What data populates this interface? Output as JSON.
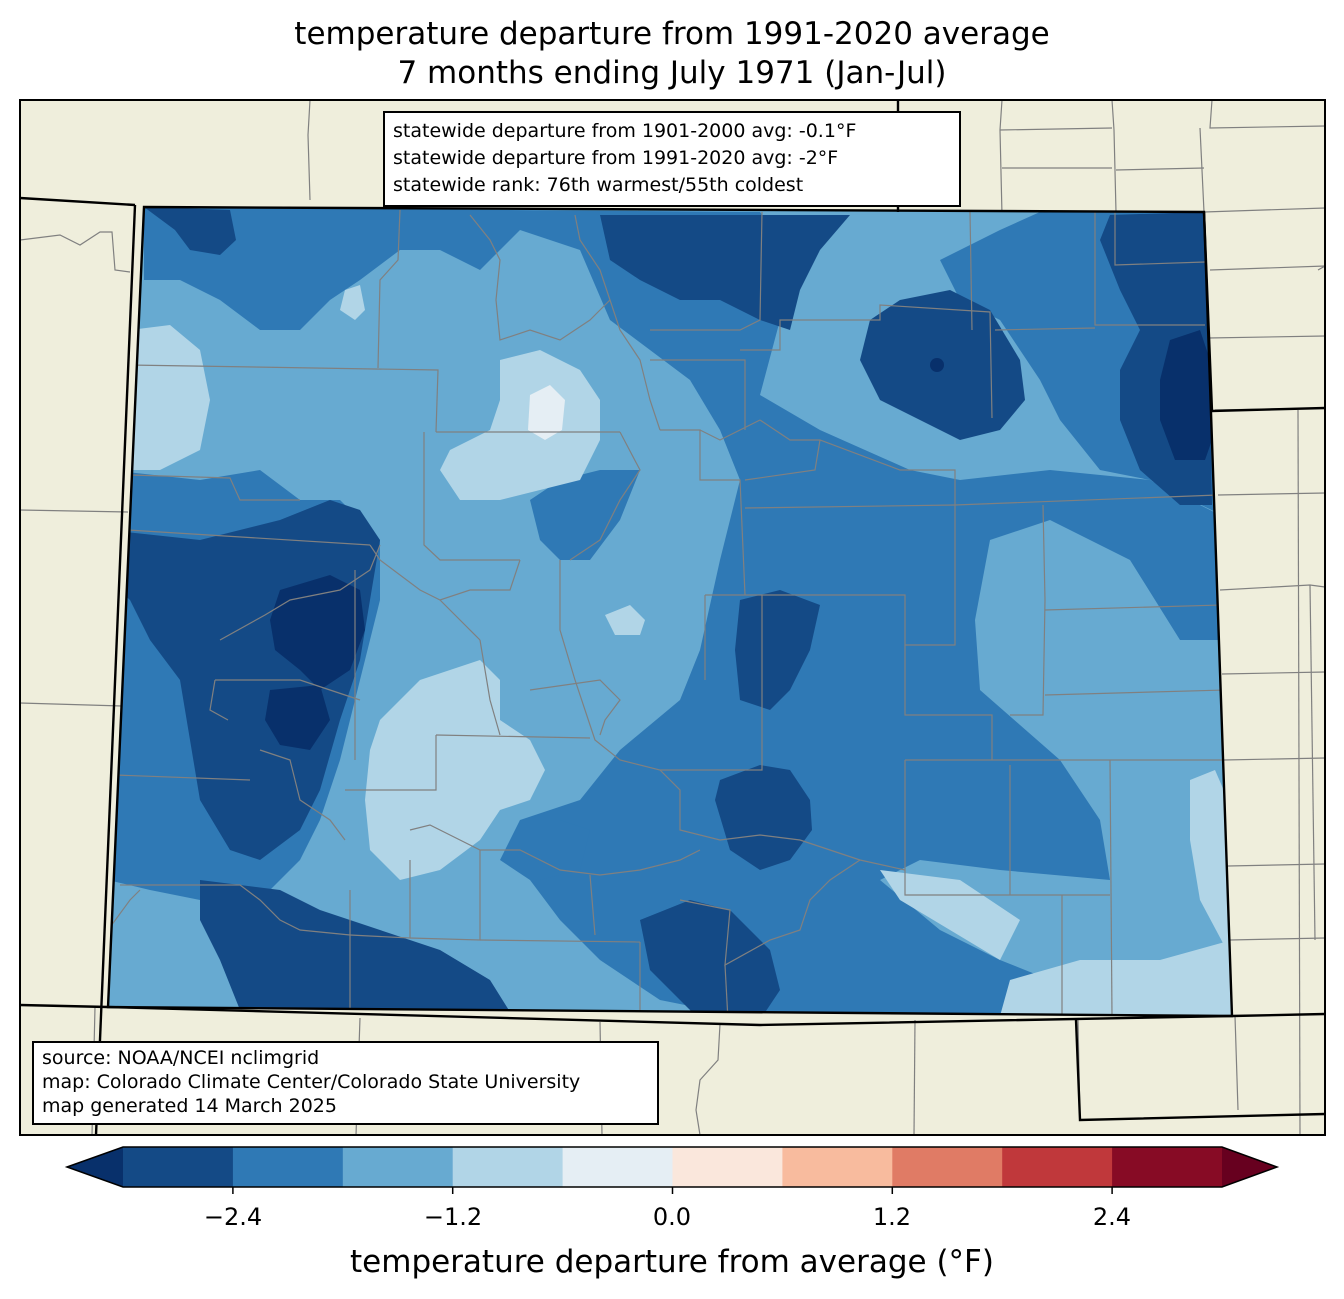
{
  "title": {
    "line1": "temperature departure from 1991-2020 average",
    "line2": "7 months ending July 1971 (Jan-Jul)"
  },
  "stats": {
    "line1": "statewide departure from 1901-2000 avg: -0.1°F",
    "line2": "statewide departure from 1991-2020 avg: -2°F",
    "line3": "statewide rank: 76th warmest/55th coldest"
  },
  "source": {
    "line1": "source: NOAA/NCEI nclimgrid",
    "line2": "map: Colorado Climate Center/Colorado State University",
    "line3": "map generated 14 March 2025"
  },
  "colorbar": {
    "label": "temperature departure from average (°F)",
    "ticks": [
      "−2.4",
      "−1.2",
      "0.0",
      "1.2",
      "2.4"
    ],
    "tick_values": [
      -2.4,
      -1.2,
      0.0,
      1.2,
      2.4
    ],
    "bounds": [
      -3.0,
      -2.4,
      -1.8,
      -1.2,
      -0.6,
      0.0,
      0.6,
      1.2,
      1.8,
      2.4,
      3.0
    ],
    "under_color": "#08306b",
    "over_color": "#67001f",
    "colors": [
      "#144a86",
      "#2f79b5",
      "#67aad1",
      "#b1d5e7",
      "#e5eef4",
      "#fae7dc",
      "#f8bb9e",
      "#e07b65",
      "#c0383b",
      "#870b25"
    ]
  },
  "map": {
    "land_color": "#efeedc",
    "background_color": "#b1d5e7"
  }
}
